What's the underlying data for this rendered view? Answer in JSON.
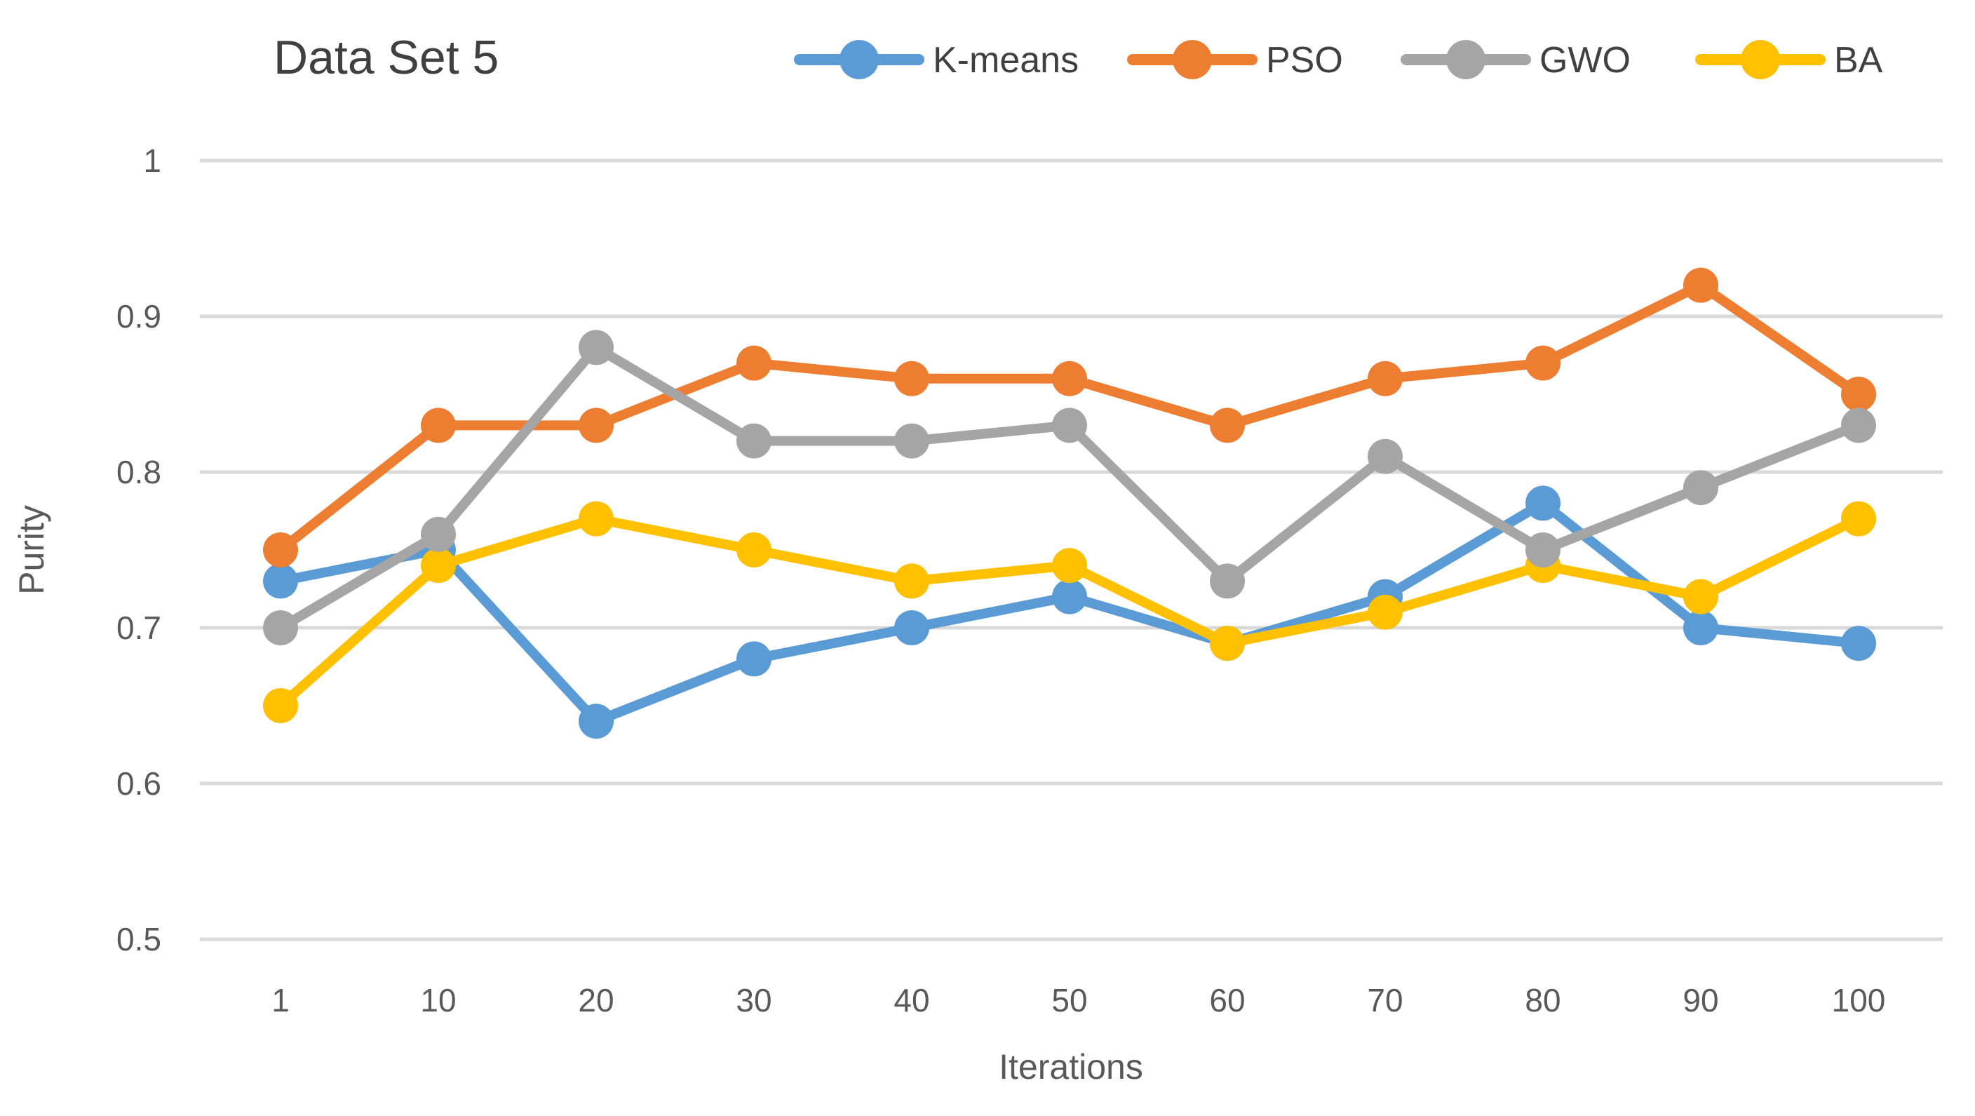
{
  "page": {
    "background": "#FFFFFF"
  },
  "chart_data": {
    "type": "line",
    "title": "Data Set 5",
    "xlabel": "Iterations",
    "ylabel": "Purity",
    "categories": [
      "1",
      "10",
      "20",
      "30",
      "40",
      "50",
      "60",
      "70",
      "80",
      "90",
      "100"
    ],
    "ylim": [
      0.5,
      1.0
    ],
    "yticks": [
      1.0,
      0.9,
      0.8,
      0.7,
      0.6,
      0.5
    ],
    "ytick_labels": [
      "1",
      "0.9",
      "0.8",
      "0.7",
      "0.6",
      "0.5"
    ],
    "grid": "horizontal-only",
    "legend_position": "top",
    "legend_order": [
      "K-means",
      "PSO",
      "GWO",
      "BA"
    ],
    "series": [
      {
        "name": "K-means",
        "color": "#5B9BD5",
        "values": [
          0.73,
          0.75,
          0.64,
          0.68,
          0.7,
          0.72,
          0.69,
          0.72,
          0.78,
          0.7,
          0.69
        ]
      },
      {
        "name": "PSO",
        "color": "#ED7D31",
        "values": [
          0.75,
          0.83,
          0.83,
          0.87,
          0.86,
          0.86,
          0.83,
          0.86,
          0.87,
          0.92,
          0.85
        ]
      },
      {
        "name": "GWO",
        "color": "#A5A5A5",
        "values": [
          0.7,
          0.76,
          0.88,
          0.82,
          0.82,
          0.83,
          0.73,
          0.81,
          0.75,
          0.79,
          0.83
        ]
      },
      {
        "name": "BA",
        "color": "#FFC000",
        "values": [
          0.65,
          0.74,
          0.77,
          0.75,
          0.73,
          0.74,
          0.69,
          0.71,
          0.74,
          0.72,
          0.77
        ]
      }
    ],
    "style": {
      "grid_color": "#D9D9D9",
      "tick_color": "#595959",
      "title_color": "#404040",
      "axis_title_color": "#595959",
      "legend_text_color": "#404040",
      "background": "#FFFFFF"
    }
  }
}
